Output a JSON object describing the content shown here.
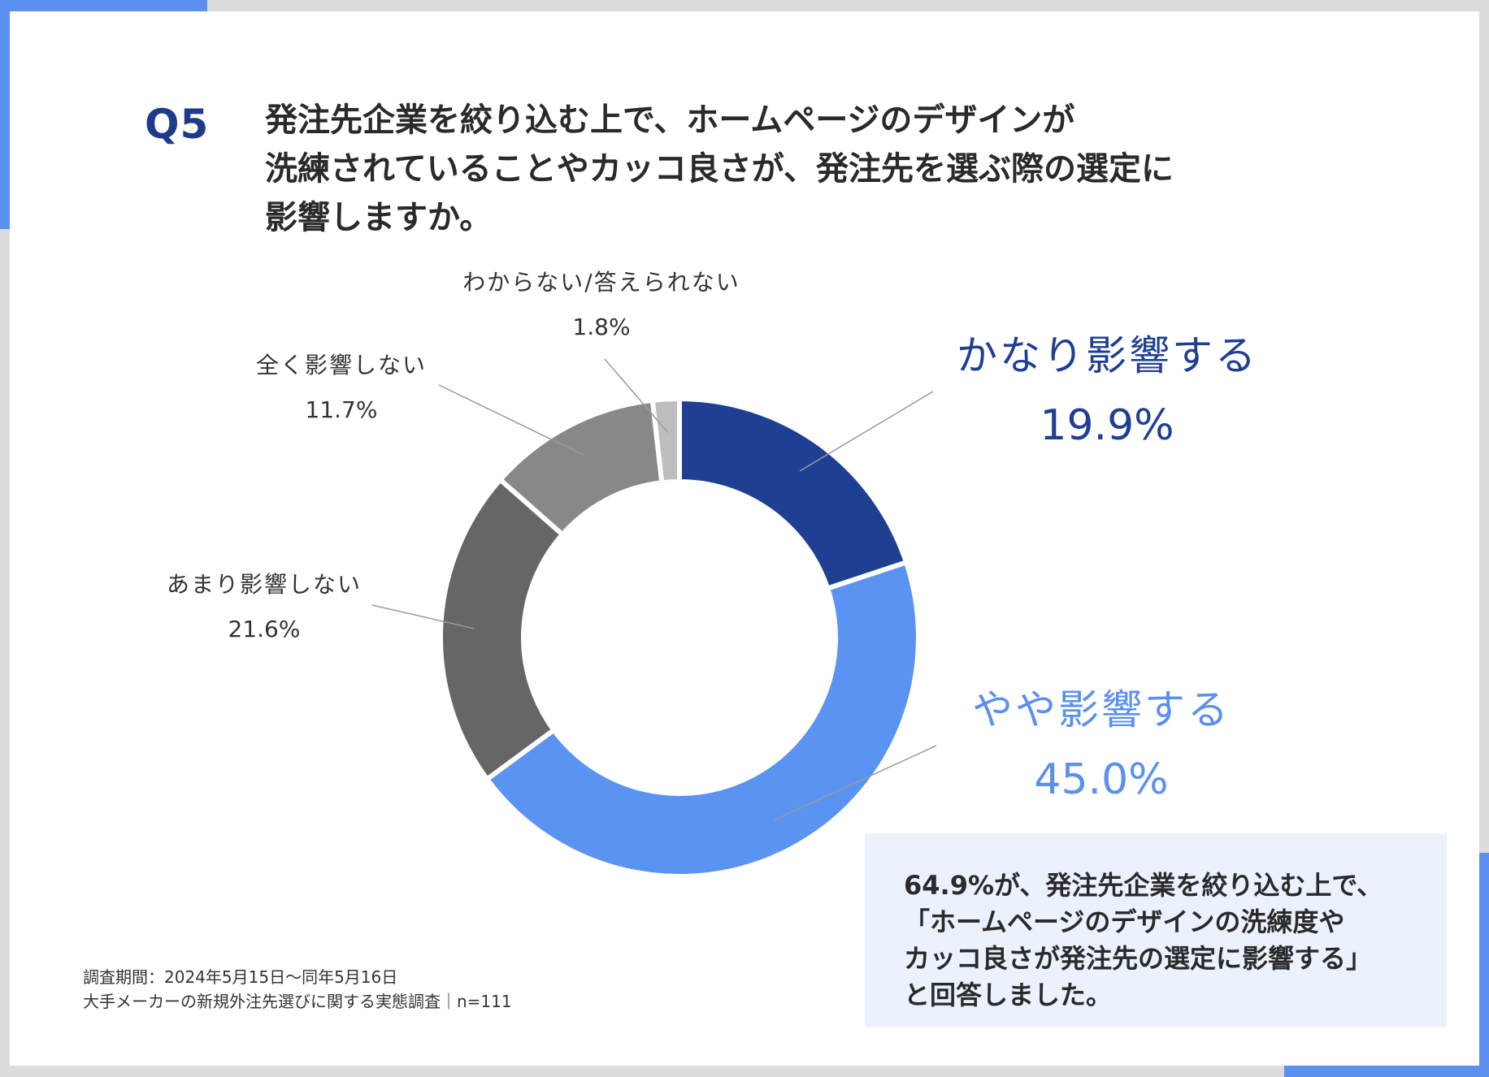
{
  "question": {
    "number": "Q5",
    "title_lines": [
      "発注先企業を絞り込む上で、ホームページのデザインが",
      "洗練されていることやカッコ良さが、発注先を選ぶ際の選定に",
      "影響しますか。"
    ]
  },
  "chart_data": {
    "type": "pie",
    "donut": true,
    "unit": "%",
    "categories": [
      "かなり影響する",
      "やや影響する",
      "あまり影響しない",
      "全く影響しない",
      "わからない/答えられない"
    ],
    "values": [
      19.9,
      45.0,
      21.6,
      11.7,
      1.8
    ],
    "value_labels": [
      "19.9%",
      "45.0%",
      "21.6%",
      "11.7%",
      "1.8%"
    ],
    "colors": [
      "#1f3f92",
      "#5b93f2",
      "#666666",
      "#888888",
      "#bdbdbd"
    ],
    "label_colors": [
      "#1f3f92",
      "#5b8ff0",
      "#333333",
      "#333333",
      "#333333"
    ]
  },
  "summary": {
    "lines": [
      "64.9%が、発注先企業を絞り込む上で、",
      "「ホームページのデザインの洗練度や",
      "カッコ良さが発注先の選定に影響する」",
      "と回答しました。"
    ]
  },
  "footnote": {
    "lines": [
      "調査期間：2024年5月15日～同年5月16日",
      "大手メーカーの新規外注先選びに関する実態調査｜n=111"
    ]
  }
}
